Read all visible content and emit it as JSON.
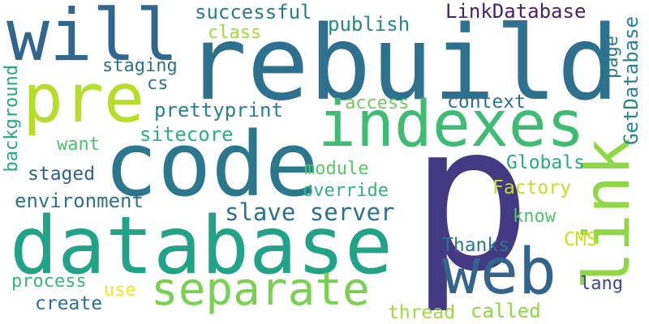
{
  "words": {
    "p": {
      "text": "p",
      "color": "#433a83"
    },
    "rebuild": {
      "text": "rebuild",
      "color": "#2d718e"
    },
    "code": {
      "text": "code",
      "color": "#2a778e"
    },
    "database": {
      "text": "database",
      "color": "#20a386"
    },
    "indexes": {
      "text": "indexes",
      "color": "#3dbc74"
    },
    "pre": {
      "text": "pre",
      "color": "#b5de2b"
    },
    "will": {
      "text": "will",
      "color": "#31668e"
    },
    "link": {
      "text": "link",
      "color": "#8fd744"
    },
    "web": {
      "text": "web",
      "color": "#32648e"
    },
    "separate": {
      "text": "separate",
      "color": "#7ad151"
    },
    "slave_server": {
      "text": "slave server",
      "color": "#2c718e"
    },
    "LinkDatabase": {
      "text": "LinkDatabase",
      "color": "#481e70"
    },
    "successful": {
      "text": "successful",
      "color": "#287c8e"
    },
    "publish": {
      "text": "publish",
      "color": "#23898e"
    },
    "class": {
      "text": "class",
      "color": "#a2da37"
    },
    "staging": {
      "text": "staging",
      "color": "#2c728e"
    },
    "cs": {
      "text": "cs",
      "color": "#2a768e"
    },
    "prettyprint": {
      "text": "prettyprint",
      "color": "#26828e"
    },
    "access": {
      "text": "access",
      "color": "#6ece58"
    },
    "context": {
      "text": "context",
      "color": "#2d708e"
    },
    "sitecore": {
      "text": "sitecore",
      "color": "#2ab07f"
    },
    "want": {
      "text": "want",
      "color": "#4ac16d"
    },
    "staged": {
      "text": "staged",
      "color": "#33628d"
    },
    "module": {
      "text": "module",
      "color": "#58c765"
    },
    "Globals": {
      "text": "Globals",
      "color": "#25ac82"
    },
    "Factory": {
      "text": "Factory",
      "color": "#c2df23"
    },
    "override": {
      "text": "override",
      "color": "#2eb37c"
    },
    "environment": {
      "text": "environment",
      "color": "#2d718e"
    },
    "know": {
      "text": "know",
      "color": "#4cc26c"
    },
    "page": {
      "text": "page",
      "color": "#2a788e"
    },
    "GetDatabase": {
      "text": "GetDatabase",
      "color": "#25848e"
    },
    "background": {
      "text": "background",
      "color": "#22a785"
    },
    "CMS": {
      "text": "CMS",
      "color": "#c8e020"
    },
    "Thanks": {
      "text": "Thanks",
      "color": "#2a788e"
    },
    "lang": {
      "text": "lang",
      "color": "#3f4889"
    },
    "process": {
      "text": "process",
      "color": "#35b779"
    },
    "use": {
      "text": "use",
      "color": "#f1e51d"
    },
    "create": {
      "text": "create",
      "color": "#2d708e"
    },
    "thread": {
      "text": "thread",
      "color": "#9bd93c"
    },
    "called": {
      "text": "called",
      "color": "#8bd646"
    }
  }
}
